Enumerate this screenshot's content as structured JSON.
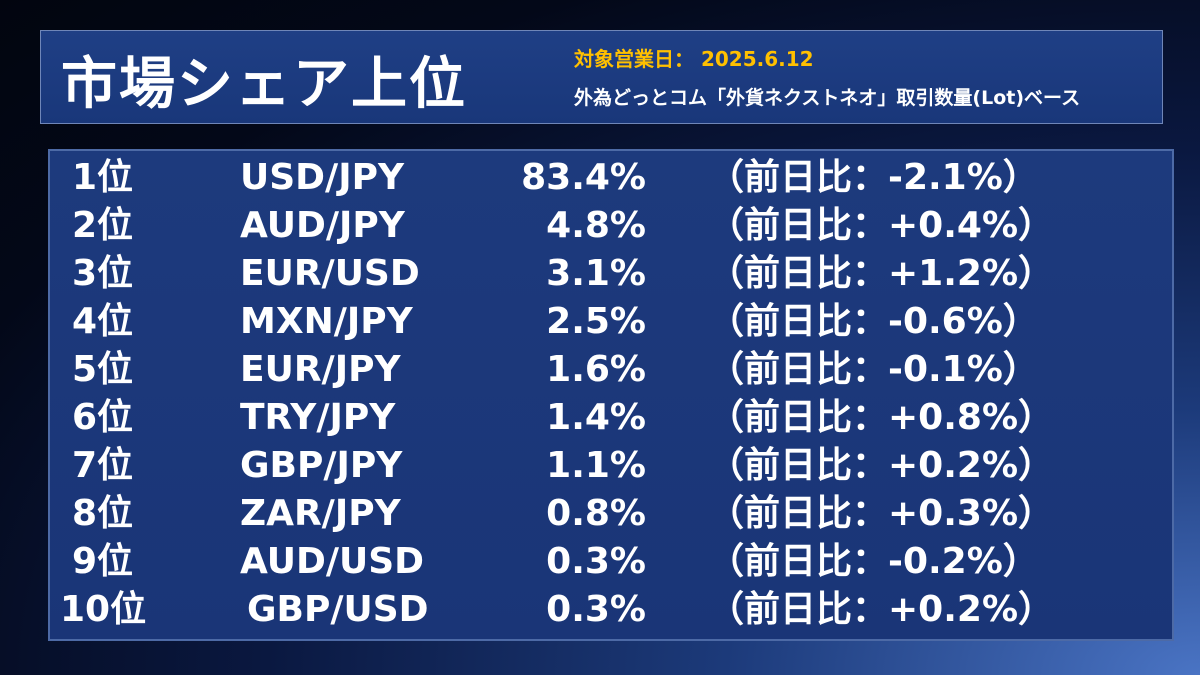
{
  "header": {
    "title": "市場シェア上位",
    "business_date_label": "対象営業日：",
    "business_date": "2025.6.12",
    "basis": "外為どっとコム「外貨ネクストネオ」取引数量(Lot)ベース"
  },
  "colors": {
    "accent": "#ffc000",
    "panel": "#1d3a7d",
    "text": "#ffffff"
  },
  "rows": [
    {
      "rank": "1位",
      "pair": "USD/JPY",
      "share": "83.4%",
      "change": "（前日比：-2.1%）"
    },
    {
      "rank": "2位",
      "pair": "AUD/JPY",
      "share": "4.8%",
      "change": "（前日比：+0.4%）"
    },
    {
      "rank": "3位",
      "pair": "EUR/USD",
      "share": "3.1%",
      "change": "（前日比：+1.2%）"
    },
    {
      "rank": "4位",
      "pair": "MXN/JPY",
      "share": "2.5%",
      "change": "（前日比：-0.6%）"
    },
    {
      "rank": "5位",
      "pair": "EUR/JPY",
      "share": "1.6%",
      "change": "（前日比：-0.1%）"
    },
    {
      "rank": "6位",
      "pair": "TRY/JPY",
      "share": "1.4%",
      "change": "（前日比：+0.8%）"
    },
    {
      "rank": "7位",
      "pair": "GBP/JPY",
      "share": "1.1%",
      "change": "（前日比：+0.2%）"
    },
    {
      "rank": "8位",
      "pair": "ZAR/JPY",
      "share": "0.8%",
      "change": "（前日比：+0.3%）"
    },
    {
      "rank": "9位",
      "pair": "AUD/USD",
      "share": "0.3%",
      "change": "（前日比：-0.2%）"
    },
    {
      "rank": "10位",
      "pair": "GBP/USD",
      "share": "0.3%",
      "change": "（前日比：+0.2%）"
    }
  ]
}
